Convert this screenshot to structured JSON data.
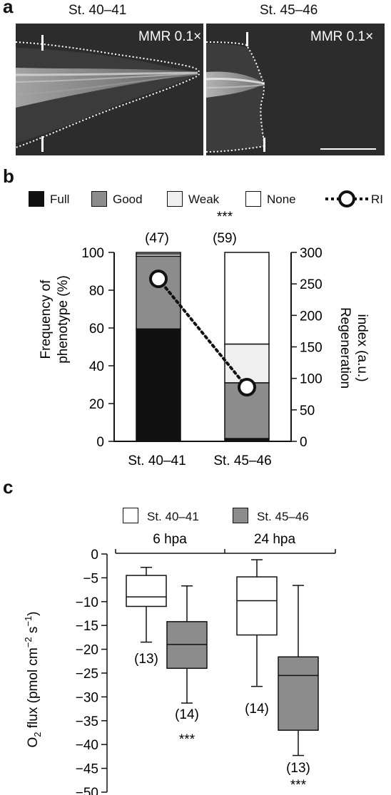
{
  "panel_a": {
    "label": "a",
    "left_title": "St. 40–41",
    "right_title": "St. 45–46",
    "left_condition": "MMR 0.1×",
    "right_condition": "MMR 0.1×"
  },
  "panel_b": {
    "label": "b",
    "legend": {
      "full": "Full",
      "good": "Good",
      "weak": "Weak",
      "none": "None",
      "ri": "RI"
    },
    "significance": "***",
    "n_labels": [
      "(47)",
      "(59)"
    ],
    "ylabel_left_1": "Frequency of",
    "ylabel_left_2": "phenotype (%)",
    "ylabel_right_1": "Regeneration",
    "ylabel_right_2": "index (a.u.)",
    "left_ticks": [
      "0",
      "20",
      "40",
      "60",
      "80",
      "100"
    ],
    "right_ticks": [
      "0",
      "50",
      "100",
      "150",
      "200",
      "250",
      "300"
    ],
    "x_labels": [
      "St. 40–41",
      "St. 45–46"
    ]
  },
  "panel_c": {
    "label": "c",
    "legend": {
      "st4041": "St. 40–41",
      "st4546": "St. 45–46"
    },
    "groups": [
      "6 hpa",
      "24 hpa"
    ],
    "ylabel": "O2 flux (pmol cm−2 s−1)",
    "ticks": [
      "0",
      "−5",
      "−10",
      "−15",
      "−20",
      "−25",
      "−30",
      "−35",
      "−40",
      "−45",
      "−50"
    ],
    "n_labels": [
      "(13)",
      "(14)",
      "(14)",
      "(13)"
    ],
    "significance": [
      "***",
      "***"
    ]
  },
  "chart_data": [
    {
      "type": "bar",
      "stacked": true,
      "categories": [
        "St. 40–41",
        "St. 45–46"
      ],
      "series": [
        {
          "name": "Full",
          "values": [
            59.5,
            1.5
          ],
          "color": "#111111"
        },
        {
          "name": "Good",
          "values": [
            38.5,
            29.5
          ],
          "color": "#8c8c8c"
        },
        {
          "name": "Weak",
          "values": [
            1.2,
            20.5
          ],
          "color": "#efefef"
        },
        {
          "name": "None",
          "values": [
            0.8,
            48.5
          ],
          "color": "#ffffff"
        }
      ],
      "ri": {
        "name": "RI",
        "values": [
          258,
          86
        ],
        "axis": "right"
      },
      "n": [
        47,
        59
      ],
      "ylim": [
        0,
        100
      ],
      "ylim_right": [
        0,
        300
      ]
    },
    {
      "type": "box",
      "groups": [
        "6 hpa",
        "24 hpa"
      ],
      "ylim": [
        -50,
        0
      ],
      "boxes": [
        {
          "group": "6 hpa",
          "series": "St. 40–41",
          "whisker_low": -18.5,
          "q1": -11,
          "median": -9,
          "q3": -4.5,
          "whisker_high": -2.8,
          "n": 13,
          "color": "#ffffff"
        },
        {
          "group": "6 hpa",
          "series": "St. 45–46",
          "whisker_low": -31.3,
          "q1": -24,
          "median": -19,
          "q3": -14.2,
          "whisker_high": -6.7,
          "n": 14,
          "color": "#8c8c8c"
        },
        {
          "group": "24 hpa",
          "series": "St. 40–41",
          "whisker_low": -27.8,
          "q1": -17,
          "median": -9.8,
          "q3": -4.8,
          "whisker_high": -1.2,
          "n": 14,
          "color": "#ffffff"
        },
        {
          "group": "24 hpa",
          "series": "St. 45–46",
          "whisker_low": -42.3,
          "q1": -37,
          "median": -25.5,
          "q3": -21.6,
          "whisker_high": -6.6,
          "n": 13,
          "color": "#8c8c8c"
        }
      ]
    }
  ]
}
